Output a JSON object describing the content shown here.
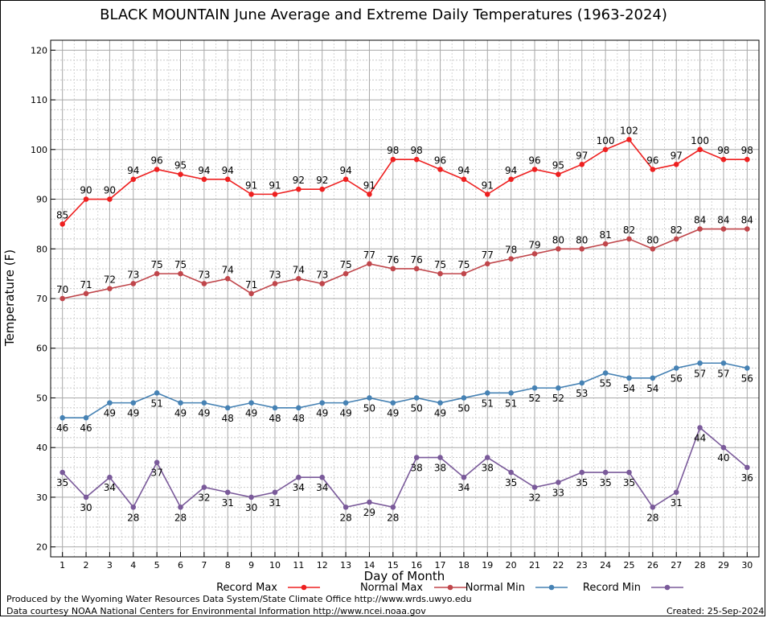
{
  "chart_data": {
    "type": "line",
    "title": "BLACK MOUNTAIN June Average and Extreme Daily Temperatures (1963-2024)",
    "xlabel": "Day of Month",
    "ylabel": "Temperature (F)",
    "x": [
      1,
      2,
      3,
      4,
      5,
      6,
      7,
      8,
      9,
      10,
      11,
      12,
      13,
      14,
      15,
      16,
      17,
      18,
      19,
      20,
      21,
      22,
      23,
      24,
      25,
      26,
      27,
      28,
      29,
      30
    ],
    "xlim": [
      0.5,
      30.5
    ],
    "ylim": [
      18,
      122
    ],
    "yticks": [
      20,
      30,
      40,
      50,
      60,
      70,
      80,
      90,
      100,
      110,
      120
    ],
    "grid": true,
    "legend": "bottom",
    "series": [
      {
        "name": "Record Max",
        "color": "#ee2020",
        "label_pos": "above",
        "values": [
          85,
          90,
          90,
          94,
          96,
          95,
          94,
          94,
          91,
          91,
          92,
          92,
          94,
          91,
          98,
          98,
          96,
          94,
          91,
          94,
          96,
          95,
          97,
          100,
          102,
          96,
          97,
          100,
          98,
          98
        ]
      },
      {
        "name": "Normal Max",
        "color": "#c0464b",
        "label_pos": "above",
        "values": [
          70,
          71,
          72,
          73,
          75,
          75,
          73,
          74,
          71,
          73,
          74,
          73,
          75,
          77,
          76,
          76,
          75,
          75,
          77,
          78,
          79,
          80,
          80,
          81,
          82,
          80,
          82,
          84,
          84,
          84
        ]
      },
      {
        "name": "Normal Min",
        "color": "#4682b4",
        "label_pos": "below",
        "values": [
          46,
          46,
          49,
          49,
          51,
          49,
          49,
          48,
          49,
          48,
          48,
          49,
          49,
          50,
          49,
          50,
          49,
          50,
          51,
          51,
          52,
          52,
          53,
          55,
          54,
          54,
          56,
          57,
          57,
          56
        ]
      },
      {
        "name": "Record Min",
        "color": "#7a5a9a",
        "label_pos": "below",
        "values": [
          35,
          30,
          34,
          28,
          37,
          28,
          32,
          31,
          30,
          31,
          34,
          34,
          28,
          29,
          28,
          38,
          38,
          34,
          38,
          35,
          32,
          33,
          35,
          35,
          35,
          28,
          31,
          44,
          40,
          36
        ]
      }
    ]
  },
  "footer": {
    "credit1": "Produced by the Wyoming Water Resources Data System/State Climate Office http://www.wrds.uwyo.edu",
    "credit2": "Data courtesy NOAA National Centers for Environmental Information http://www.ncei.noaa.gov",
    "created": "Created:  25-Sep-2024"
  }
}
